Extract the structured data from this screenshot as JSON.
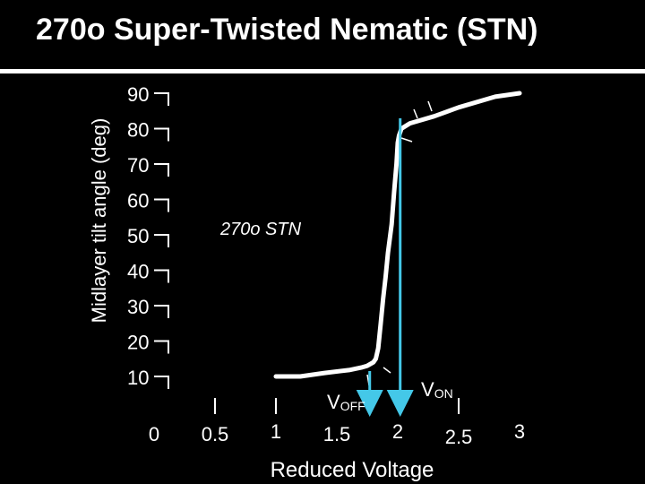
{
  "title": "270o Super-Twisted Nematic (STN)",
  "chart_data": {
    "type": "line",
    "title": "270o Super-Twisted Nematic (STN)",
    "xlabel": "Reduced Voltage",
    "ylabel": "Midlayer tilt angle (deg)",
    "x_ticks": [
      "0",
      "0.5",
      "1",
      "1.5",
      "2",
      "2.5",
      "3"
    ],
    "y_ticks": [
      "90",
      "80",
      "70",
      "60",
      "50",
      "40",
      "30",
      "20",
      "10"
    ],
    "xlim": [
      0,
      3
    ],
    "ylim": [
      10,
      90
    ],
    "series": [
      {
        "name": "",
        "x": [
          1.0,
          1.2,
          1.4,
          1.6,
          1.7,
          1.75,
          1.8,
          1.82,
          1.84,
          1.86,
          1.88,
          1.9,
          1.92,
          1.95,
          1.97,
          1.99,
          2.0,
          2.01,
          2.03,
          2.1,
          2.3,
          2.5,
          2.8,
          3.0
        ],
        "y": [
          10,
          10,
          11,
          11.8,
          12.5,
          13,
          14,
          15,
          18,
          25,
          32,
          38,
          45,
          53,
          62,
          70,
          76,
          78,
          80,
          81.5,
          83.5,
          86,
          89,
          90
        ],
        "color": "#ffffff"
      }
    ],
    "annotations": {
      "curve_label": "270o STN",
      "v_off_label": "VOFF",
      "v_off_x": 1.77,
      "v_on_label": "VON",
      "v_on_x": 2.02,
      "marker_color": "#44c8e8"
    },
    "grid": false,
    "legend": "none"
  }
}
